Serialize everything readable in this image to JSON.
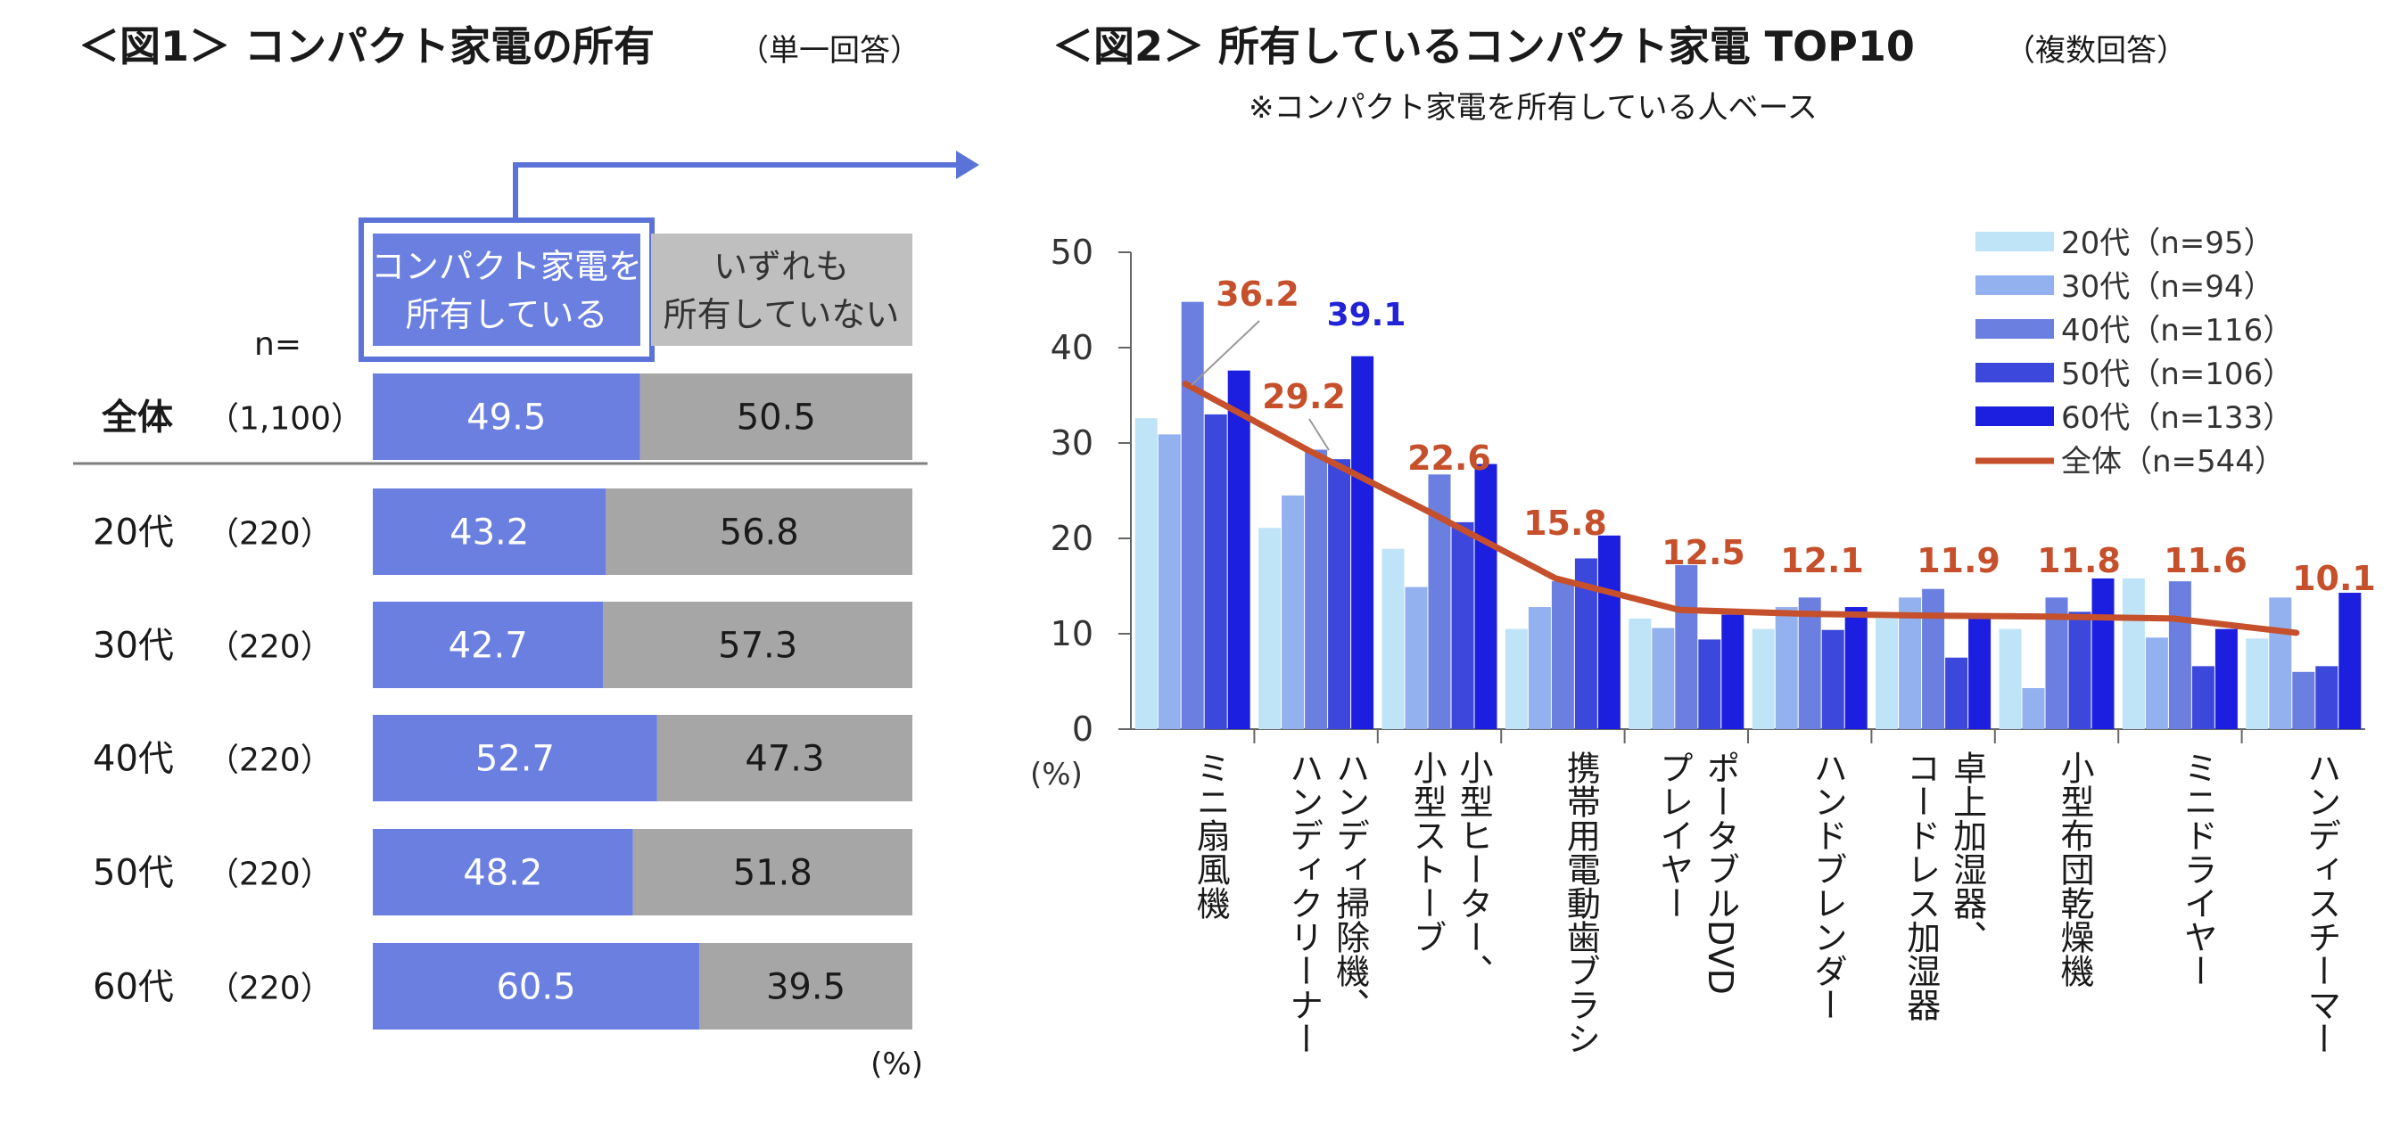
{
  "figure1": {
    "title": "＜図1＞ コンパクト家電の所有",
    "title_note": "（単一回答）",
    "n_label": "n=",
    "header_own": [
      "コンパクト家電を",
      "所有している"
    ],
    "header_none": [
      "いずれも",
      "所有していない"
    ],
    "unit": "(%)"
  },
  "figure2": {
    "title": "＜図2＞ 所有しているコンパクト家電 TOP10",
    "title_note": "（複数回答）",
    "subtitle": "※コンパクト家電を所有している人ベース",
    "unit": "(%)"
  },
  "colors": {
    "own": "#6b7fe0",
    "none": "#a6a6a6",
    "frame": "#5b73d9",
    "overall_line": "#c5502b",
    "highlight_label": "#2323d6",
    "series": [
      "#bfe3f7",
      "#93b1ee",
      "#6b7fe0",
      "#3c48dc",
      "#1c1fe0"
    ]
  },
  "chart_data": [
    {
      "type": "bar",
      "stacked": true,
      "orientation": "horizontal",
      "categories": [
        {
          "label": "全体",
          "n": "（1,100）"
        },
        {
          "label": "20代",
          "n": "（220）"
        },
        {
          "label": "30代",
          "n": "（220）"
        },
        {
          "label": "40代",
          "n": "（220）"
        },
        {
          "label": "50代",
          "n": "（220）"
        },
        {
          "label": "60代",
          "n": "（220）"
        }
      ],
      "series": [
        {
          "name": "コンパクト家電を所有している",
          "values": [
            49.5,
            43.2,
            42.7,
            52.7,
            48.2,
            60.5
          ]
        },
        {
          "name": "いずれも所有していない",
          "values": [
            50.5,
            56.8,
            57.3,
            47.3,
            51.8,
            39.5
          ]
        }
      ],
      "xlim": [
        0,
        100
      ]
    },
    {
      "type": "bar",
      "categories": [
        [
          "ミニ扇風機"
        ],
        [
          "ハンディ掃除機、",
          "ハンディクリーナー"
        ],
        [
          "小型ヒーター、",
          "小型ストーブ"
        ],
        [
          "携帯用電動歯ブラシ"
        ],
        [
          "ポータブルDVD",
          "プレイヤー"
        ],
        [
          "ハンドブレンダー"
        ],
        [
          "卓上加湿器、",
          "コードレス加湿器"
        ],
        [
          "小型布団乾燥機"
        ],
        [
          "ミニドライヤー"
        ],
        [
          "ハンディスチーマー"
        ]
      ],
      "series": [
        {
          "name": "20代（n=95）",
          "values": [
            32.6,
            21.1,
            18.9,
            10.5,
            11.6,
            10.5,
            11.6,
            10.5,
            15.8,
            9.5
          ]
        },
        {
          "name": "30代（n=94）",
          "values": [
            30.9,
            24.5,
            14.9,
            12.8,
            10.6,
            12.8,
            13.8,
            4.3,
            9.6,
            13.8
          ]
        },
        {
          "name": "40代（n=116）",
          "values": [
            44.8,
            29.3,
            26.7,
            15.5,
            17.2,
            13.8,
            14.7,
            13.8,
            15.5,
            6.0
          ]
        },
        {
          "name": "50代（n=106）",
          "values": [
            33.0,
            28.3,
            21.7,
            17.9,
            9.4,
            10.4,
            7.5,
            12.3,
            6.6,
            6.6
          ]
        },
        {
          "name": "60代（n=133）",
          "values": [
            37.6,
            39.1,
            27.8,
            20.3,
            12.0,
            12.8,
            12.0,
            15.8,
            10.5,
            14.3
          ]
        }
      ],
      "line": {
        "name": "全体（n=544）",
        "values": [
          36.2,
          29.2,
          22.6,
          15.8,
          12.5,
          12.1,
          11.9,
          11.8,
          11.6,
          10.1
        ]
      },
      "callout": {
        "text": "39.1"
      },
      "ylim": [
        0,
        50
      ],
      "yticks": [
        0,
        10,
        20,
        30,
        40,
        50
      ],
      "legend": "top-right"
    }
  ]
}
